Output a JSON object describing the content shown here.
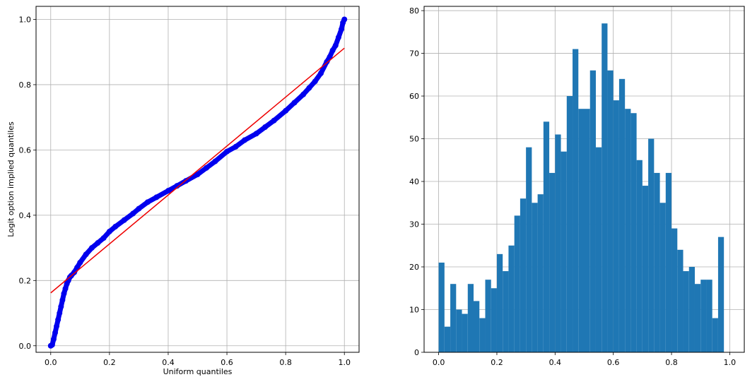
{
  "chart_data": [
    {
      "type": "scatter",
      "title": "",
      "xlabel": "Uniform quantiles",
      "ylabel": "Logit option implied quantiles",
      "xlim": [
        -0.05,
        1.05
      ],
      "ylim": [
        -0.02,
        1.04
      ],
      "xticks": [
        "0.0",
        "0.2",
        "0.4",
        "0.6",
        "0.8",
        "1.0"
      ],
      "yticks": [
        "0.0",
        "0.2",
        "0.4",
        "0.6",
        "0.8",
        "1.0"
      ],
      "grid": true,
      "point_color": "#0000ee",
      "line_color": "#ee0000",
      "series": [
        {
          "kind": "points",
          "x": [
            0.0,
            0.005,
            0.01,
            0.015,
            0.02,
            0.025,
            0.03,
            0.035,
            0.04,
            0.045,
            0.05,
            0.055,
            0.06,
            0.065,
            0.07,
            0.08,
            0.09,
            0.1,
            0.12,
            0.14,
            0.16,
            0.18,
            0.2,
            0.22,
            0.25,
            0.28,
            0.3,
            0.33,
            0.36,
            0.4,
            0.43,
            0.46,
            0.5,
            0.53,
            0.56,
            0.6,
            0.63,
            0.66,
            0.7,
            0.73,
            0.76,
            0.8,
            0.83,
            0.86,
            0.88,
            0.9,
            0.92,
            0.94,
            0.95,
            0.96,
            0.97,
            0.98,
            0.99,
            0.995,
            1.0
          ],
          "y": [
            0.0,
            0.003,
            0.02,
            0.04,
            0.06,
            0.08,
            0.1,
            0.12,
            0.14,
            0.16,
            0.175,
            0.19,
            0.2,
            0.21,
            0.215,
            0.225,
            0.24,
            0.255,
            0.28,
            0.3,
            0.315,
            0.33,
            0.35,
            0.365,
            0.385,
            0.405,
            0.42,
            0.44,
            0.455,
            0.475,
            0.49,
            0.505,
            0.525,
            0.545,
            0.565,
            0.595,
            0.61,
            0.63,
            0.65,
            0.67,
            0.69,
            0.72,
            0.745,
            0.77,
            0.79,
            0.81,
            0.835,
            0.87,
            0.885,
            0.905,
            0.92,
            0.945,
            0.97,
            0.99,
            1.0
          ]
        },
        {
          "kind": "fit-line",
          "x": [
            0.0,
            1.0
          ],
          "y": [
            0.162,
            0.912
          ]
        }
      ]
    },
    {
      "type": "bar",
      "title": "",
      "xlabel": "",
      "ylabel": "",
      "xlim": [
        -0.05,
        1.05
      ],
      "ylim": [
        0,
        81
      ],
      "xticks": [
        "0.0",
        "0.2",
        "0.4",
        "0.6",
        "0.8",
        "1.0"
      ],
      "yticks": [
        "0",
        "10",
        "20",
        "30",
        "40",
        "50",
        "60",
        "70",
        "80"
      ],
      "grid": true,
      "bar_color": "#1f77b4",
      "bins": 50,
      "range": [
        0,
        1
      ],
      "values": [
        21,
        6,
        16,
        10,
        9,
        16,
        12,
        8,
        17,
        15,
        23,
        19,
        25,
        32,
        36,
        48,
        35,
        37,
        54,
        42,
        51,
        47,
        60,
        71,
        57,
        57,
        66,
        48,
        77,
        66,
        59,
        64,
        57,
        56,
        45,
        39,
        50,
        42,
        35,
        42,
        29,
        24,
        19,
        20,
        16,
        17,
        17,
        8,
        27,
        0
      ]
    }
  ]
}
